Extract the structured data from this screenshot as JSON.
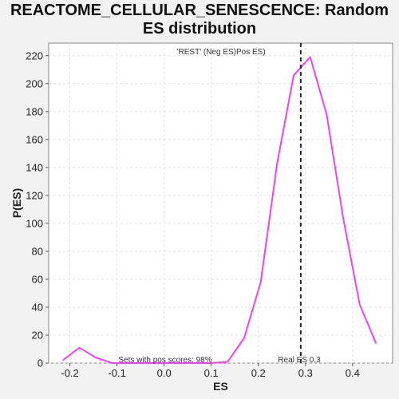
{
  "chart_data": {
    "type": "line",
    "title_line1": "REACTOME_CELLULAR_SENESCENCE: Random",
    "title_line2": "ES distribution",
    "xlabel": "ES",
    "ylabel": "P(ES)",
    "xlim": [
      -0.245,
      0.485
    ],
    "ylim": [
      0,
      229
    ],
    "xticks": [
      -0.2,
      -0.1,
      0.0,
      0.1,
      0.2,
      0.3,
      0.4
    ],
    "xtick_labels": [
      "-0.2",
      "-0.1",
      "0.0",
      "0.1",
      "0.2",
      "0.3",
      "0.4"
    ],
    "yticks": [
      0,
      20,
      40,
      60,
      80,
      100,
      120,
      140,
      160,
      180,
      200,
      220
    ],
    "ytick_labels": [
      "0",
      "20",
      "40",
      "60",
      "80",
      "100",
      "120",
      "140",
      "160",
      "180",
      "200",
      "220"
    ],
    "grid": true,
    "series": [
      {
        "color": "#ee44ee",
        "x": [
          -0.215,
          -0.18,
          -0.145,
          -0.11,
          -0.075,
          -0.04,
          -0.005,
          0.03,
          0.065,
          0.1,
          0.135,
          0.17,
          0.205,
          0.24,
          0.275,
          0.31,
          0.345,
          0.38,
          0.415,
          0.45
        ],
        "y": [
          2,
          11,
          4,
          0,
          0,
          0,
          0,
          0,
          0,
          0,
          1,
          18,
          58,
          143,
          206,
          219,
          178,
          104,
          42,
          14
        ]
      }
    ],
    "vline": {
      "x": 0.29,
      "label": "Real ES 0.3"
    },
    "annotations": {
      "neg_label": "'REST' (Neg ES)",
      "pos_label": "Pos ES)",
      "neg_color": "#4444dd",
      "pos_color": "#ee4444",
      "pos_scores": "Sets with pos scores: 98%"
    }
  }
}
